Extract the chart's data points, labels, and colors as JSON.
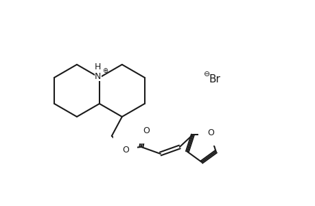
{
  "background_color": "#ffffff",
  "line_color": "#1a1a1a",
  "line_width": 1.5,
  "figsize": [
    4.6,
    3.0
  ],
  "dpi": 100,
  "atoms": {
    "N": {
      "symbol": "N",
      "charge": "+"
    },
    "H_label": "H",
    "O_carbonyl": "O",
    "O_ester": "O",
    "O_furan": "O",
    "Br": "Br",
    "Br_charge": "−"
  }
}
